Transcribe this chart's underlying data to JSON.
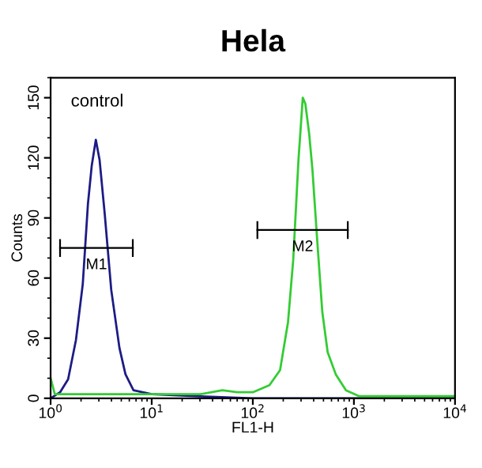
{
  "chart_data": {
    "type": "line",
    "title": "Hela",
    "xlabel": "FL1-H",
    "ylabel": "Counts",
    "log": "x",
    "grid": false,
    "marker": "none",
    "line_style": "solid",
    "xlim": [
      1,
      10000
    ],
    "xticks": [
      {
        "value": 1,
        "label": "10$^{0}$"
      },
      {
        "value": 10,
        "label": "10$^{1}$"
      },
      {
        "value": 100,
        "label": "10$^{2}$"
      },
      {
        "value": 1000,
        "label": "10$^{3}$"
      },
      {
        "value": 10000,
        "label": "10$^{4}$"
      }
    ],
    "ylim": [
      0,
      160
    ],
    "yticks": [
      0,
      30,
      60,
      90,
      120,
      150
    ],
    "series": [
      {
        "color": "#1c1c85",
        "x": [
          1,
          1.24,
          1.49,
          1.78,
          2.08,
          2.34,
          2.55,
          2.8,
          3.05,
          3.43,
          3.98,
          4.8,
          5.5,
          6.6,
          10,
          30,
          100,
          1000,
          10000
        ],
        "values": [
          0,
          3,
          9.5,
          29,
          57,
          97,
          116,
          129,
          119,
          92,
          54,
          25,
          12,
          4,
          2,
          1,
          0,
          0,
          0
        ]
      },
      {
        "color": "#33cc33",
        "x": [
          1,
          1.1,
          2,
          5,
          10,
          30,
          50,
          70,
          100,
          146,
          186,
          223,
          251,
          283,
          312,
          331,
          361,
          389,
          432,
          487,
          550,
          661,
          835,
          1130,
          3000,
          10000
        ],
        "values": [
          10,
          2,
          2,
          2,
          2,
          2,
          4,
          3,
          3,
          6.5,
          14,
          38,
          69,
          119,
          150,
          147,
          132,
          114,
          80,
          43,
          23,
          12,
          4,
          1,
          1,
          1
        ]
      },
      {
        "name": "M1",
        "color": "#000000",
        "x": [
          1.24,
          6.5
        ],
        "values": [
          75,
          75
        ]
      },
      {
        "name": "M2",
        "color": "#000000",
        "x": [
          111,
          870
        ],
        "values": [
          84,
          84
        ]
      }
    ],
    "annotations": [
      "control"
    ]
  }
}
